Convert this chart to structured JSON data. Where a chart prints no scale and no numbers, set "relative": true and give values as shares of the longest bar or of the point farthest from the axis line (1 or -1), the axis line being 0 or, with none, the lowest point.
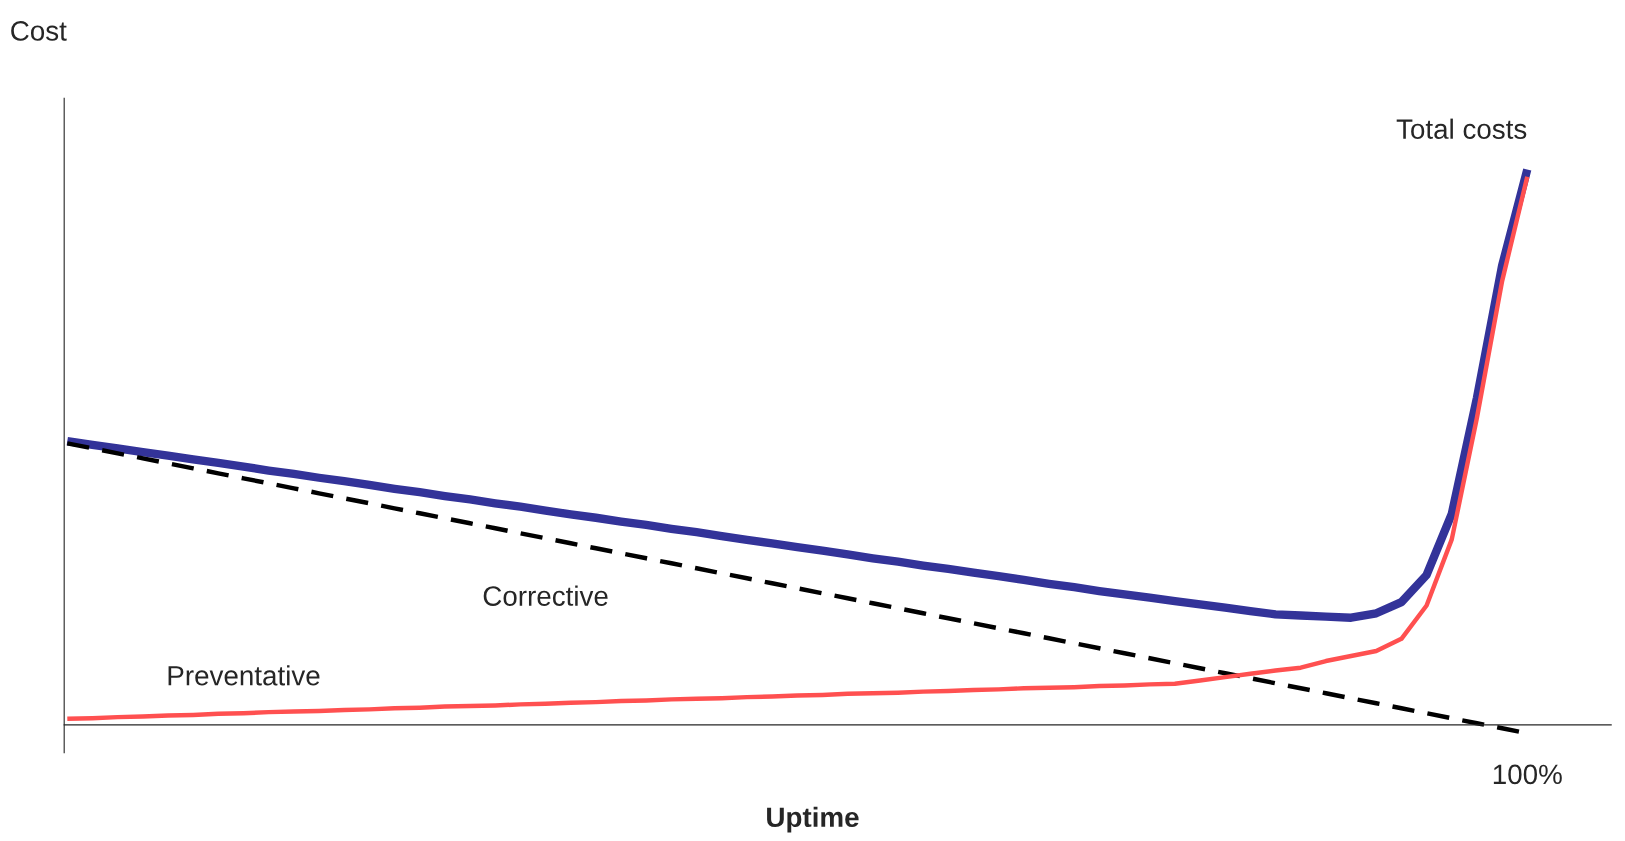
{
  "chart_data": {
    "type": "line",
    "relative": true,
    "xlabel": "Uptime",
    "ylabel": "Cost",
    "categories": [
      null,
      null,
      null,
      null,
      null,
      null,
      null,
      null,
      null,
      null,
      null,
      null,
      null,
      null,
      null,
      null,
      null,
      null,
      null,
      null,
      null,
      null,
      null,
      null,
      null,
      null,
      null,
      null,
      null,
      null,
      null,
      null,
      null,
      null,
      null,
      null,
      null,
      null,
      null,
      null,
      null,
      null,
      null,
      null,
      null,
      null,
      null,
      null,
      null,
      null,
      null,
      null,
      null,
      null,
      null,
      null,
      null,
      null,
      null
    ],
    "series": [
      {
        "name": "Total costs",
        "color": "#333399",
        "values": [
          0.511,
          0.504,
          0.498,
          0.491,
          0.485,
          0.478,
          0.472,
          0.465,
          0.458,
          0.452,
          0.445,
          0.439,
          0.432,
          0.425,
          0.419,
          0.412,
          0.406,
          0.399,
          0.393,
          0.386,
          0.379,
          0.373,
          0.366,
          0.36,
          0.353,
          0.347,
          0.34,
          0.333,
          0.327,
          0.32,
          0.314,
          0.307,
          0.3,
          0.294,
          0.287,
          0.281,
          0.274,
          0.268,
          0.261,
          0.254,
          0.248,
          0.241,
          0.235,
          0.229,
          0.223,
          0.217,
          0.211,
          0.205,
          0.199,
          0.197,
          0.195,
          0.193,
          0.201,
          0.221,
          0.27,
          0.38,
          0.589,
          0.827,
          1.0
        ]
      },
      {
        "name": "Corrective",
        "color": "#000000",
        "line_style": "dashed",
        "values": [
          0.507,
          0.498,
          0.489,
          0.48,
          0.471,
          0.462,
          0.453,
          0.444,
          0.435,
          0.426,
          0.417,
          0.408,
          0.399,
          0.39,
          0.381,
          0.372,
          0.363,
          0.354,
          0.345,
          0.336,
          0.327,
          0.318,
          0.309,
          0.3,
          0.291,
          0.282,
          0.273,
          0.264,
          0.255,
          0.246,
          0.237,
          0.228,
          0.219,
          0.21,
          0.201,
          0.192,
          0.183,
          0.174,
          0.165,
          0.156,
          0.147,
          0.138,
          0.129,
          0.12,
          0.111,
          0.102,
          0.093,
          0.084,
          0.075,
          0.066,
          0.057,
          0.048,
          0.039,
          0.03,
          0.021,
          0.012,
          0.003,
          -0.006,
          -0.015
        ]
      },
      {
        "name": "Preventative",
        "color": "#ff5050",
        "values": [
          0.011,
          0.012,
          0.014,
          0.015,
          0.017,
          0.018,
          0.02,
          0.021,
          0.023,
          0.024,
          0.025,
          0.027,
          0.028,
          0.03,
          0.031,
          0.033,
          0.034,
          0.035,
          0.037,
          0.038,
          0.04,
          0.041,
          0.043,
          0.044,
          0.046,
          0.047,
          0.048,
          0.05,
          0.051,
          0.053,
          0.054,
          0.056,
          0.057,
          0.058,
          0.06,
          0.061,
          0.063,
          0.064,
          0.066,
          0.067,
          0.068,
          0.07,
          0.071,
          0.073,
          0.074,
          0.08,
          0.086,
          0.092,
          0.098,
          0.103,
          0.115,
          0.124,
          0.133,
          0.155,
          0.215,
          0.334,
          0.553,
          0.799,
          0.987
        ]
      }
    ],
    "annotations": [
      "100%"
    ]
  }
}
